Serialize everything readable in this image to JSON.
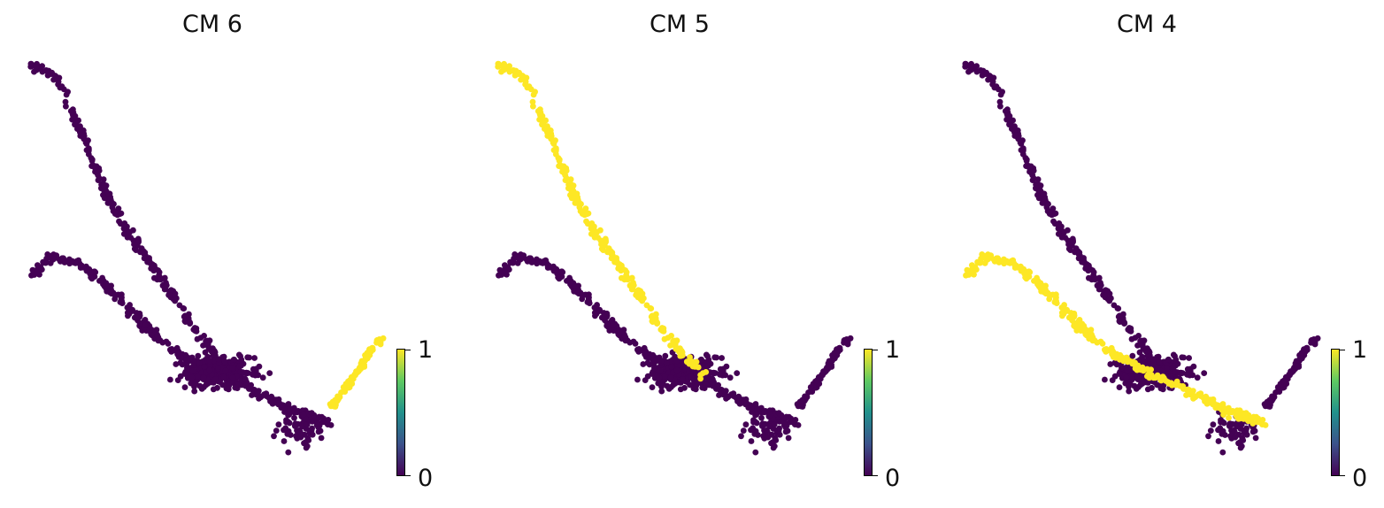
{
  "colorbar": {
    "min_label": "0",
    "max_label": "1",
    "range": [
      0,
      1
    ],
    "colormap": "viridis"
  },
  "colors": {
    "background": "#ffffff",
    "low": "#440154",
    "mid": "#21918c",
    "high": "#fde725"
  },
  "chart_data": [
    {
      "type": "scatter",
      "title": "CM 6",
      "xlabel": "",
      "ylabel": "",
      "axes_visible": false,
      "grid": false,
      "legend": "none",
      "color_scale": {
        "min": 0,
        "max": 1,
        "ticks": [
          0,
          1
        ]
      },
      "high_value_region": "lower-right branch tip",
      "segment_values": {
        "upper_branch": 0,
        "lower_branch": 0,
        "main_cluster": 0,
        "right_branch": 1
      }
    },
    {
      "type": "scatter",
      "title": "CM 5",
      "xlabel": "",
      "ylabel": "",
      "axes_visible": false,
      "grid": false,
      "legend": "none",
      "color_scale": {
        "min": 0,
        "max": 1,
        "ticks": [
          0,
          1
        ]
      },
      "high_value_region": "upper branch",
      "segment_values": {
        "upper_branch": 1,
        "lower_branch": 0,
        "main_cluster": 0,
        "right_branch": 0
      }
    },
    {
      "type": "scatter",
      "title": "CM 4",
      "xlabel": "",
      "ylabel": "",
      "axes_visible": false,
      "grid": false,
      "legend": "none",
      "color_scale": {
        "min": 0,
        "max": 1,
        "ticks": [
          0,
          1
        ]
      },
      "high_value_region": "lower-left branch",
      "segment_values": {
        "upper_branch": 0,
        "lower_branch": 1,
        "main_cluster": 0,
        "right_branch": 0
      }
    }
  ]
}
